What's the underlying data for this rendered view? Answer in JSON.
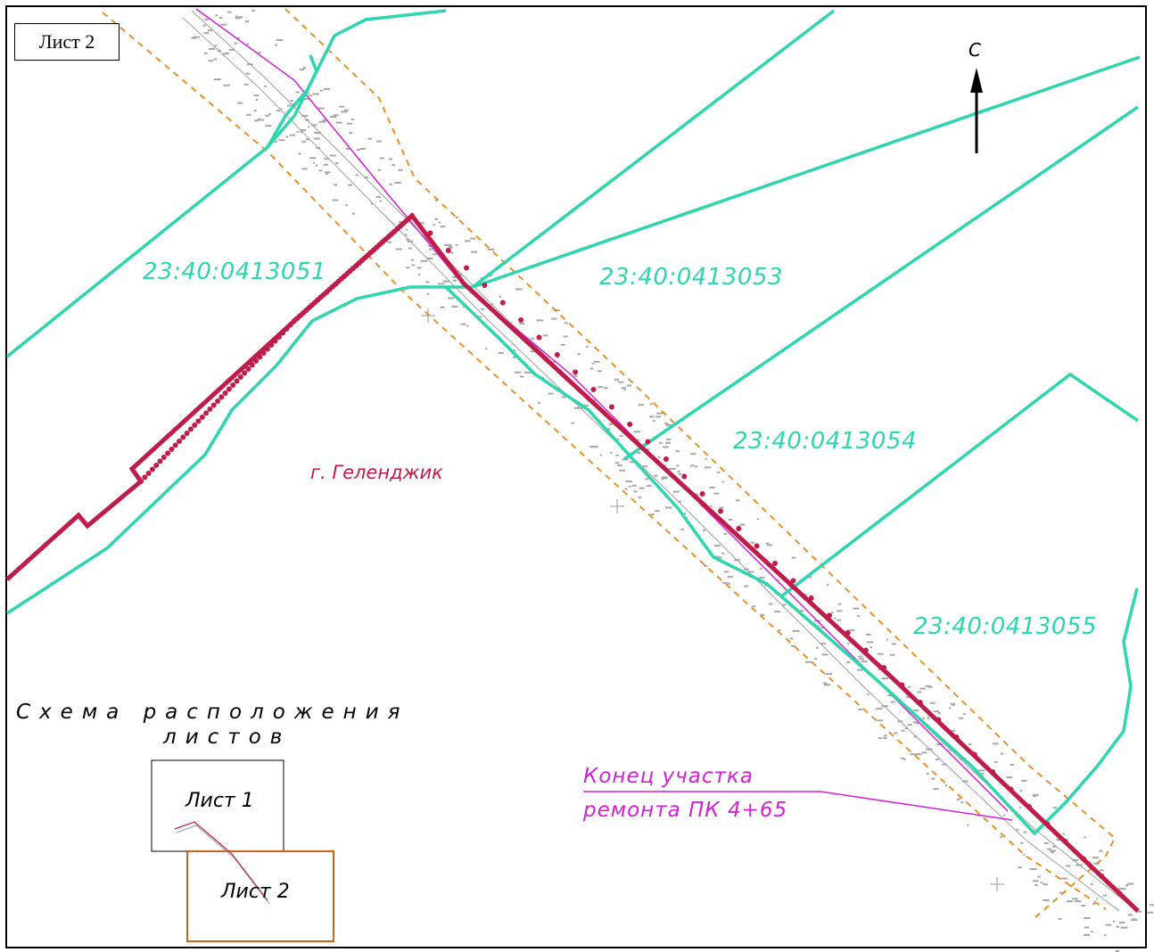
{
  "sheet_label": "Лист 2",
  "north_label": "С",
  "parcels": [
    {
      "id": "p1",
      "label": "23:40:0413051"
    },
    {
      "id": "p2",
      "label": "23:40:0413053"
    },
    {
      "id": "p3",
      "label": "23:40:0413054"
    },
    {
      "id": "p4",
      "label": "23:40:0413055"
    }
  ],
  "city_label": "г. Геленджик",
  "end_of_section": {
    "line1": "Конец участка",
    "line2": "ремонта ПК 4+65"
  },
  "layout_scheme": {
    "title_line1": "Схема расположения",
    "title_line2": "листов",
    "sheet1_label": "Лист 1",
    "sheet2_label": "Лист 2"
  },
  "colors": {
    "parcel_boundary": "#2ed6b0",
    "city_boundary": "#c01c4a",
    "buffer_zone": "#e8902a",
    "pipeline": "#d61fd6",
    "survey_points": "#9a9a9a",
    "highlight_sheet": "#c8641e"
  }
}
